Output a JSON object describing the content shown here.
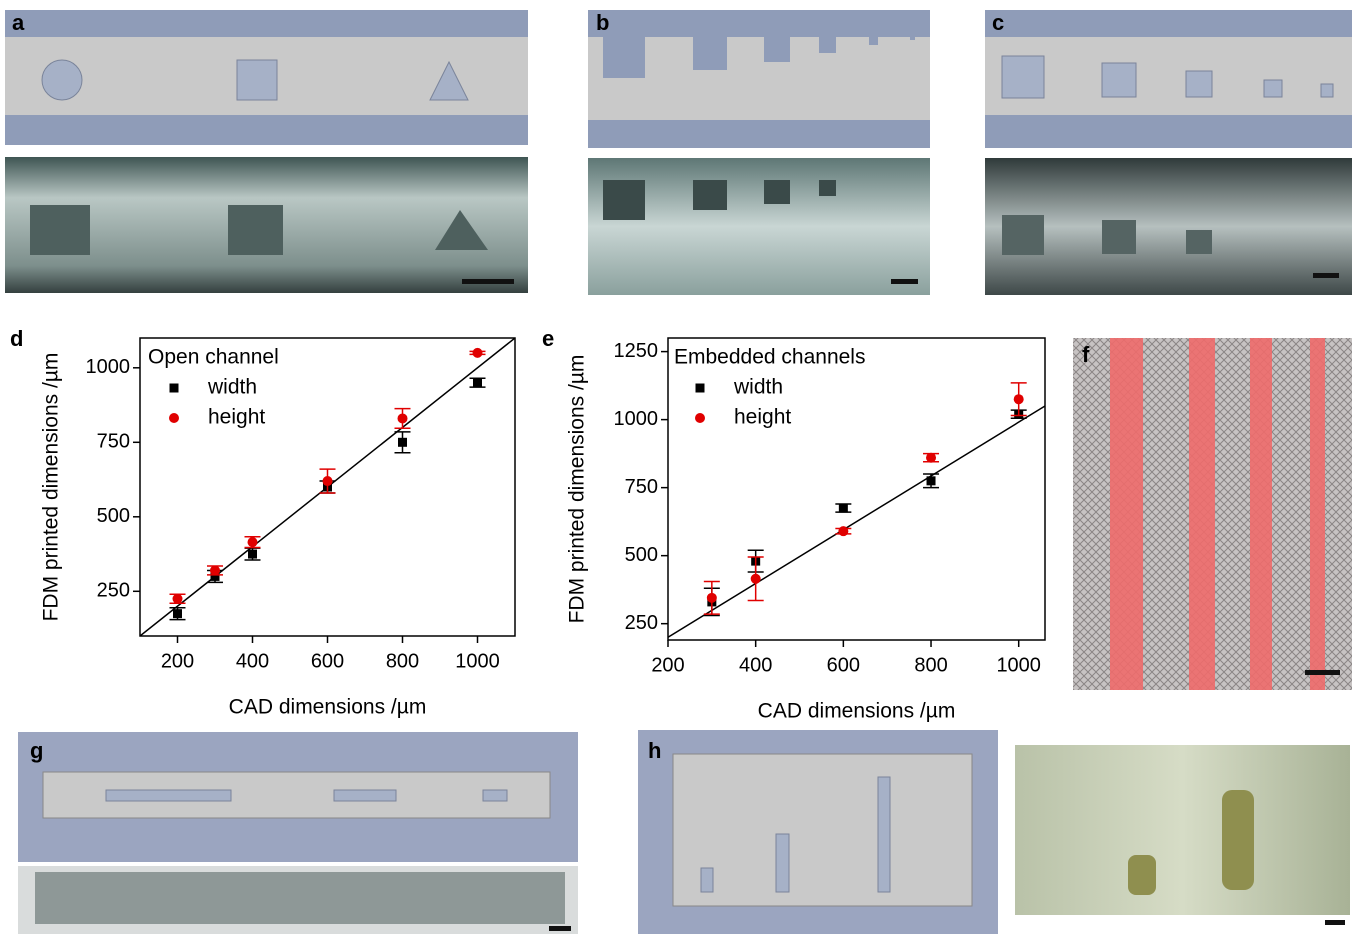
{
  "panel_labels": [
    "a",
    "b",
    "c",
    "d",
    "e",
    "f",
    "g",
    "h"
  ],
  "chart_data": [
    {
      "type": "scatter",
      "xlabel": "CAD dimensions /µm",
      "ylabel": "FDM printed dimensions /µm",
      "legend_title": "Open channel",
      "xlim": [
        100,
        1100
      ],
      "xticks": [
        200,
        400,
        600,
        800,
        1000
      ],
      "ylim": [
        100,
        1100
      ],
      "yticks": [
        250,
        500,
        750,
        1000
      ],
      "reference_line": [
        [
          100,
          100
        ],
        [
          1100,
          1100
        ]
      ],
      "series": [
        {
          "name": "width",
          "color": "#000000",
          "marker": "square",
          "x": [
            200,
            300,
            400,
            600,
            800,
            1000
          ],
          "values": [
            175,
            300,
            375,
            600,
            750,
            950
          ],
          "errors": [
            20,
            20,
            20,
            20,
            35,
            15
          ]
        },
        {
          "name": "height",
          "color": "#e00000",
          "marker": "circle",
          "x": [
            200,
            300,
            400,
            600,
            800,
            1000
          ],
          "values": [
            225,
            320,
            415,
            620,
            830,
            1050
          ],
          "errors": [
            15,
            15,
            18,
            40,
            33,
            5
          ]
        }
      ]
    },
    {
      "type": "scatter",
      "xlabel": "CAD dimensions /µm",
      "ylabel": "FDM printed dimensions /µm",
      "legend_title": "Embedded channels",
      "xlim": [
        200,
        1060
      ],
      "xticks": [
        200,
        400,
        600,
        800,
        1000
      ],
      "ylim": [
        190,
        1300
      ],
      "yticks": [
        250,
        500,
        750,
        1000,
        1250
      ],
      "reference_line": [
        [
          200,
          200
        ],
        [
          1060,
          1050
        ]
      ],
      "series": [
        {
          "name": "width",
          "color": "#000000",
          "marker": "square",
          "x": [
            300,
            400,
            600,
            800,
            1000
          ],
          "values": [
            330,
            480,
            675,
            775,
            1020
          ],
          "errors": [
            50,
            40,
            15,
            25,
            15
          ]
        },
        {
          "name": "height",
          "color": "#e00000",
          "marker": "circle",
          "x": [
            300,
            400,
            600,
            800,
            1000
          ],
          "values": [
            345,
            415,
            590,
            860,
            1075
          ],
          "errors": [
            60,
            80,
            10,
            15,
            60
          ]
        }
      ]
    }
  ]
}
